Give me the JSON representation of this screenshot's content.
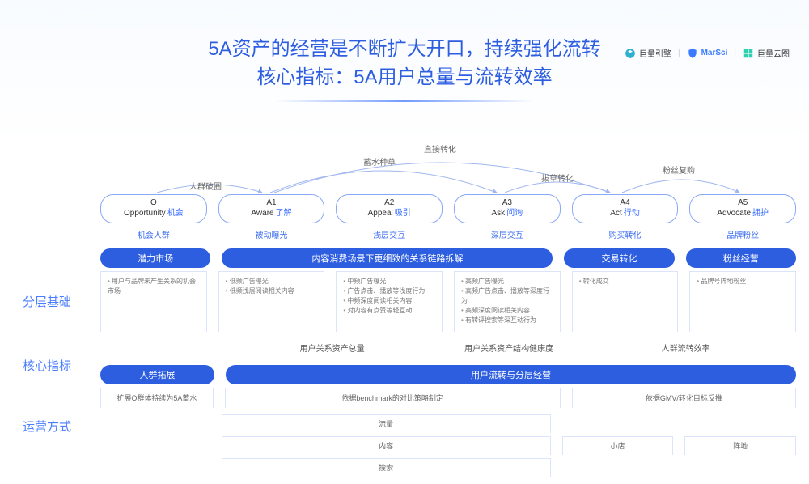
{
  "colors": {
    "primary": "#2d5ee0",
    "accent": "#3b6df0",
    "border": "#dbe4fb",
    "text_muted": "#777",
    "bg_top": "#f8fbff"
  },
  "logos": {
    "a": "巨量引擎",
    "b": "MarSci",
    "c": "巨量云图"
  },
  "title": {
    "line1": "5A资产的经营是不断扩大开口，持续强化流转",
    "line2": "核心指标：5A用户总量与流转效率"
  },
  "side_labels": {
    "l1": "分层基础",
    "l2": "核心指标",
    "l3": "运营方式"
  },
  "arcs": {
    "a1": "人群破圈",
    "a2": "蓄水种草",
    "a3": "直接转化",
    "a4": "拔草转化",
    "a5": "粉丝复购"
  },
  "stages": [
    {
      "code": "O",
      "en": "Opportunity",
      "cn": "机会",
      "sub": "机会人群"
    },
    {
      "code": "A1",
      "en": "Aware",
      "cn": "了解",
      "sub": "被动曝光"
    },
    {
      "code": "A2",
      "en": "Appeal",
      "cn": "吸引",
      "sub": "浅层交互"
    },
    {
      "code": "A3",
      "en": "Ask",
      "cn": "问询",
      "sub": "深层交互"
    },
    {
      "code": "A4",
      "en": "Act",
      "cn": "行动",
      "sub": "购买转化"
    },
    {
      "code": "A5",
      "en": "Advocate",
      "cn": "拥护",
      "sub": "品牌粉丝"
    }
  ],
  "group_headers": {
    "g1": "潜力市场",
    "g2": "内容消费场景下更细致的关系链路拆解",
    "g3": "交易转化",
    "g4": "粉丝经营"
  },
  "details": {
    "c0": [
      "用户与品牌未产生关系的机会市场"
    ],
    "c1": [
      "低频广告曝光",
      "低频浅层阅读相关内容"
    ],
    "c2": [
      "中频广告曝光",
      "广告点击、播放等浅度行为",
      "中频深度阅读相关内容",
      "对内容有点赞等轻互动"
    ],
    "c3": [
      "高频广告曝光",
      "高频广告点击、播放等深度行为",
      "高频深度阅读相关内容",
      "有转评搜索等深互动行为"
    ],
    "c4": [
      "转化成交"
    ],
    "c5": [
      "品牌号阵地粉丝"
    ]
  },
  "metrics": {
    "m1": "用户关系资产总量",
    "m2": "用户关系资产结构健康度",
    "m3": "人群流转效率"
  },
  "ops_headers": {
    "o1": "人群拓展",
    "o2": "用户流转与分层经营"
  },
  "ops_subs": {
    "s1": "扩展O群体持续为5A蓄水",
    "s2": "依据benchmark的对比策略制定",
    "s3": "依据GMV/转化目标反推"
  },
  "bottom": {
    "b1": "流量",
    "b2": "内容",
    "b3": "搜索",
    "b4": "小店",
    "b5": "阵地"
  }
}
